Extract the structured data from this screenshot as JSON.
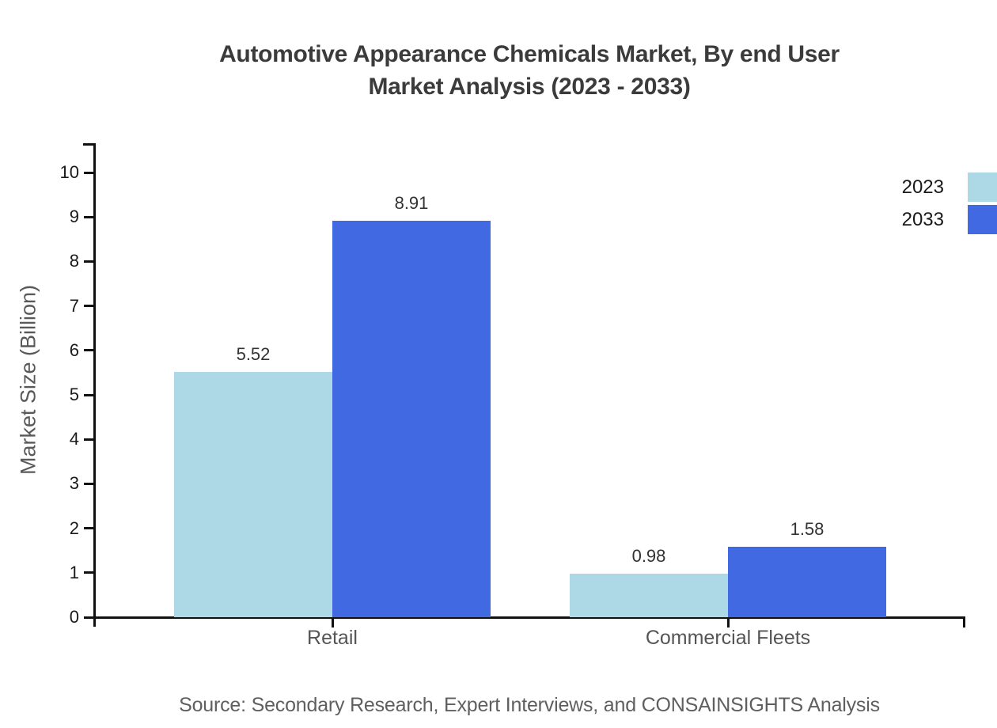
{
  "title": {
    "line1": "Automotive Appearance Chemicals Market, By end User",
    "line2": "Market Analysis (2023 - 2033)"
  },
  "source_note": "Source: Secondary Research, Expert Interviews, and CONSAINSIGHTS Analysis",
  "colors": {
    "series_2023": "#ADD8E6",
    "series_2033": "#4169E1",
    "axis": "#111111",
    "title_text": "#3b3b3b",
    "tick_text": "#1a1a1a",
    "value_text": "#333333",
    "category_text": "#555555",
    "muted_text": "#5f5f5f",
    "background": "#ffffff"
  },
  "chart_data": {
    "type": "bar",
    "title": "Automotive Appearance Chemicals Market, By end User Market Analysis (2023 - 2033)",
    "categories": [
      "Retail",
      "Commercial Fleets"
    ],
    "series": [
      {
        "name": "2023",
        "color": "#ADD8E6",
        "values": [
          5.52,
          0.98
        ]
      },
      {
        "name": "2033",
        "color": "#4169E1",
        "values": [
          8.91,
          1.58
        ]
      }
    ],
    "xlabel": "",
    "ylabel": "Market Size (Billion)",
    "ylim": [
      0,
      10
    ],
    "yticks": [
      0,
      1,
      2,
      3,
      4,
      5,
      6,
      7,
      8,
      9,
      10
    ],
    "grid": false,
    "legend_position": "top-right",
    "value_label_format": "2-decimals",
    "source": "Source: Secondary Research, Expert Interviews, and CONSAINSIGHTS Analysis"
  }
}
